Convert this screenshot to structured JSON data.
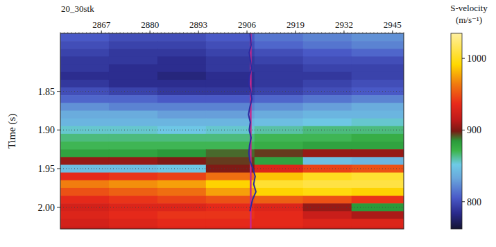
{
  "chart_data": {
    "type": "heatmap",
    "title": "20_30stk",
    "y_label": "Time (s)",
    "colorbar_label": "S-velocity",
    "colorbar_unit": "(m/s⁻¹)",
    "xlim": [
      2856,
      2948
    ],
    "xticks": [
      2867,
      2880,
      2893,
      2906,
      2919,
      2932,
      2945
    ],
    "ylim": [
      1.775,
      2.028
    ],
    "yticks": [
      1.85,
      {
        "value": 1.9,
        "label": "1.90"
      },
      1.95,
      {
        "value": 2,
        "label": "2.00"
      }
    ],
    "grid": true,
    "x_edges": [
      2856,
      2869,
      2882,
      2895,
      2908,
      2921,
      2934,
      2948
    ],
    "y_edges": [
      1.775,
      1.785,
      1.795,
      1.805,
      1.815,
      1.825,
      1.835,
      1.845,
      1.855,
      1.865,
      1.875,
      1.885,
      1.895,
      1.905,
      1.915,
      1.925,
      1.935,
      1.945,
      1.955,
      1.965,
      1.975,
      1.985,
      1.995,
      2.005,
      2.015,
      2.025,
      2.028
    ],
    "cells": [
      [
        805,
        800,
        800,
        805,
        815,
        820,
        825
      ],
      [
        800,
        795,
        795,
        800,
        810,
        815,
        820
      ],
      [
        795,
        790,
        790,
        795,
        800,
        805,
        810
      ],
      [
        790,
        790,
        785,
        790,
        795,
        800,
        800
      ],
      [
        790,
        785,
        785,
        790,
        790,
        795,
        795
      ],
      [
        785,
        785,
        780,
        785,
        790,
        790,
        795
      ],
      [
        790,
        785,
        785,
        785,
        790,
        795,
        800
      ],
      [
        800,
        795,
        790,
        790,
        795,
        800,
        805
      ],
      [
        810,
        810,
        805,
        805,
        810,
        815,
        820
      ],
      [
        825,
        820,
        820,
        820,
        825,
        830,
        835
      ],
      [
        835,
        835,
        830,
        830,
        835,
        840,
        840
      ],
      [
        840,
        840,
        840,
        840,
        845,
        850,
        855
      ],
      [
        855,
        855,
        850,
        855,
        860,
        865,
        865
      ],
      [
        865,
        865,
        865,
        865,
        870,
        870,
        875
      ],
      [
        870,
        870,
        870,
        870,
        875,
        880,
        880
      ],
      [
        880,
        880,
        885,
        890,
        895,
        905,
        905
      ],
      [
        905,
        905,
        900,
        895,
        880,
        845,
        840
      ],
      [
        845,
        845,
        850,
        900,
        930,
        945,
        950
      ],
      [
        935,
        940,
        945,
        960,
        985,
        1000,
        1005
      ],
      [
        965,
        970,
        975,
        990,
        1005,
        1010,
        1010
      ],
      [
        950,
        955,
        960,
        975,
        990,
        995,
        990
      ],
      [
        935,
        940,
        945,
        950,
        955,
        950,
        940
      ],
      [
        925,
        930,
        930,
        935,
        930,
        905,
        885
      ],
      [
        930,
        935,
        940,
        940,
        935,
        920,
        910
      ],
      [
        925,
        930,
        935,
        935,
        935,
        930,
        930
      ],
      [
        920,
        925,
        930,
        930,
        930,
        925,
        925
      ]
    ],
    "colorbar_lim": [
      762,
      1035
    ],
    "colorbar_ticks": [
      800,
      900,
      1000
    ],
    "series": [
      {
        "type": "line",
        "color": "#c8288c",
        "x": [
          2907,
          2907
        ],
        "values": [
          1.775,
          2.028
        ]
      },
      {
        "type": "line",
        "color": "#2b2ba0",
        "x": [
          2906.8,
          2907.1,
          2906.6,
          2906.9,
          2907.2,
          2906.7,
          2906.5,
          2907.0,
          2907.3,
          2906.8,
          2906.4,
          2906.9,
          2906.6,
          2907.1,
          2906.7,
          2906.5,
          2906.8,
          2907.6,
          2908.2,
          2907.8,
          2908.4,
          2907.5,
          2907.0,
          2906.8
        ],
        "values": [
          1.775,
          1.79,
          1.8,
          1.81,
          1.82,
          1.83,
          1.84,
          1.85,
          1.86,
          1.87,
          1.88,
          1.89,
          1.9,
          1.91,
          1.92,
          1.93,
          1.94,
          1.95,
          1.96,
          1.97,
          1.98,
          1.99,
          2.0,
          2.005
        ]
      }
    ]
  }
}
